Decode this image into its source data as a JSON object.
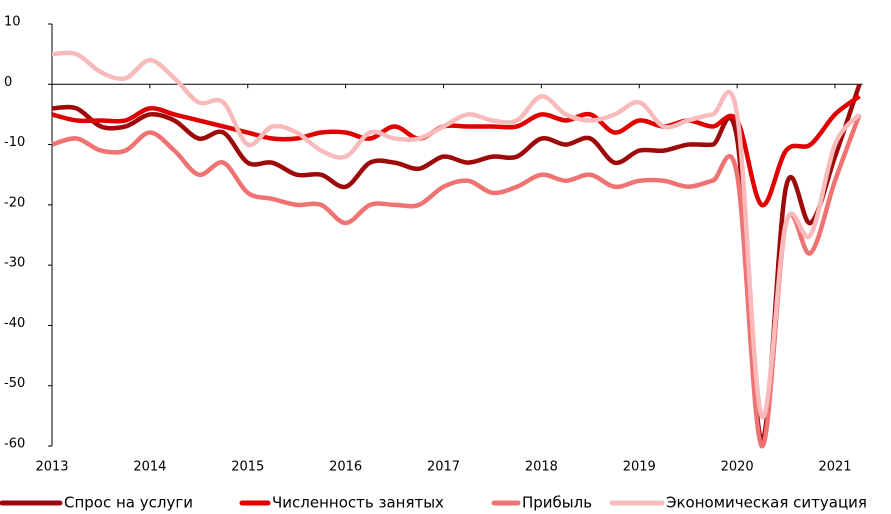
{
  "chart_data": {
    "type": "line",
    "x": [
      2013,
      2013.25,
      2013.5,
      2013.75,
      2014,
      2014.25,
      2014.5,
      2014.75,
      2015,
      2015.25,
      2015.5,
      2015.75,
      2016,
      2016.25,
      2016.5,
      2016.75,
      2017,
      2017.25,
      2017.5,
      2017.75,
      2018,
      2018.25,
      2018.5,
      2018.75,
      2019,
      2019.25,
      2019.5,
      2019.75,
      2020,
      2020.25,
      2020.5,
      2020.75,
      2021,
      2021.25
    ],
    "series": [
      {
        "name": "Спрос на услуги",
        "color": "#9e0a0a",
        "values": [
          -4,
          -4,
          -7,
          -7,
          -5,
          -6,
          -9,
          -8,
          -13,
          -13,
          -15,
          -15,
          -17,
          -13,
          -13,
          -14,
          -12,
          -13,
          -12,
          -12,
          -9,
          -10,
          -9,
          -13,
          -11,
          -11,
          -10,
          -10,
          -9,
          -59,
          -17,
          -23,
          -12,
          0
        ]
      },
      {
        "name": "Численность занятых",
        "color": "#e00000",
        "values": [
          -5,
          -6,
          -6,
          -6,
          -4,
          -5,
          -6,
          -7,
          -8,
          -9,
          -9,
          -8,
          -8,
          -9,
          -7,
          -9,
          -7,
          -7,
          -7,
          -7,
          -5,
          -6,
          -5,
          -8,
          -6,
          -7,
          -6,
          -7,
          -6,
          -20,
          -11,
          -10,
          -5,
          -2
        ]
      },
      {
        "name": "Прибыль",
        "color": "#f07373",
        "values": [
          -10,
          -9,
          -11,
          -11,
          -8,
          -11,
          -15,
          -13,
          -18,
          -19,
          -20,
          -20,
          -23,
          -20,
          -20,
          -20,
          -17,
          -16,
          -18,
          -17,
          -15,
          -16,
          -15,
          -17,
          -16,
          -16,
          -17,
          -16,
          -15,
          -60,
          -23,
          -28,
          -16,
          -5
        ]
      },
      {
        "name": "Экономическая ситуация",
        "color": "#f8baba",
        "values": [
          5,
          5,
          2,
          1,
          4,
          1,
          -3,
          -3,
          -10,
          -7,
          -8,
          -11,
          -12,
          -8,
          -9,
          -9,
          -7,
          -5,
          -6,
          -6,
          -2,
          -5,
          -6,
          -5,
          -3,
          -7,
          -6,
          -5,
          -5,
          -55,
          -23,
          -25,
          -10,
          -5
        ]
      }
    ],
    "xlim": [
      2013,
      2021.25
    ],
    "xticks": [
      2013,
      2014,
      2015,
      2016,
      2017,
      2018,
      2019,
      2020,
      2021
    ],
    "ylim": [
      -60,
      10
    ],
    "yticks": [
      -60,
      -50,
      -40,
      -30,
      -20,
      -10,
      0,
      10
    ]
  }
}
